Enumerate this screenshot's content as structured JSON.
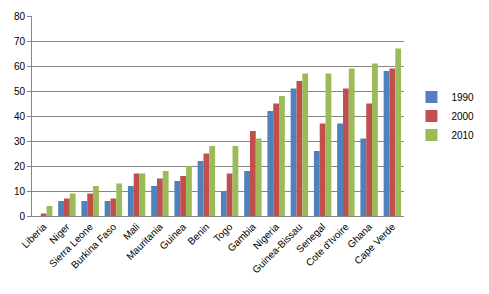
{
  "chart_data": {
    "type": "bar",
    "categories": [
      "Liberia",
      "Niger",
      "Sierra Leone",
      "Burkina Faso",
      "Mali",
      "Mauritania",
      "Guinea",
      "Benin",
      "Togo",
      "Gambia",
      "Nigeria",
      "Guinea-Bissau",
      "Senegal",
      "Cote d'Ivoire",
      "Ghana",
      "Cape Verde"
    ],
    "series": [
      {
        "name": "1990",
        "color": "#4F81BD",
        "values": [
          0,
          6,
          6,
          6,
          12,
          12,
          14,
          22,
          10,
          18,
          42,
          51,
          26,
          37,
          31,
          58
        ]
      },
      {
        "name": "2000",
        "color": "#C0504D",
        "values": [
          1,
          7,
          9,
          7,
          17,
          15,
          16,
          25,
          17,
          34,
          45,
          54,
          37,
          51,
          45,
          59
        ]
      },
      {
        "name": "2010",
        "color": "#9BBB59",
        "values": [
          4,
          9,
          12,
          13,
          17,
          18,
          20,
          28,
          28,
          31,
          48,
          57,
          57,
          59,
          61,
          67
        ]
      }
    ],
    "ylim": [
      0,
      80
    ],
    "yticks": [
      0,
      10,
      20,
      30,
      40,
      50,
      60,
      70,
      80
    ],
    "grid": true,
    "legend": "right"
  }
}
